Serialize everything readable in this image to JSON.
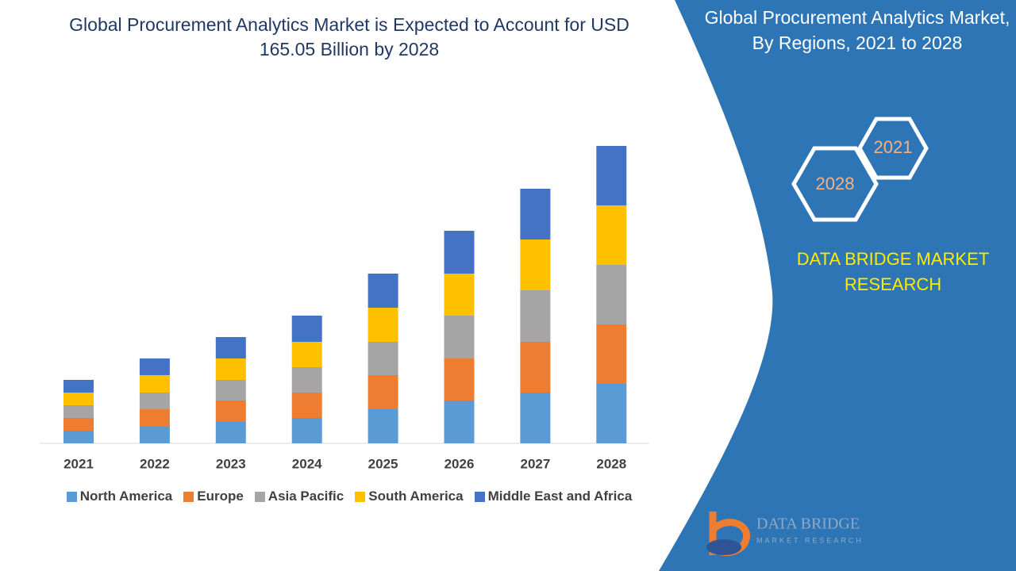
{
  "chart_data": {
    "type": "bar",
    "stacked": true,
    "title": "Global Procurement Analytics Market is Expected to Account for USD 165.05 Billion by 2028",
    "categories": [
      "2021",
      "2022",
      "2023",
      "2024",
      "2025",
      "2026",
      "2027",
      "2028"
    ],
    "series": [
      {
        "name": "North America",
        "color": "#5b9bd5",
        "values": [
          16,
          21,
          27,
          32,
          43,
          54,
          64,
          75
        ]
      },
      {
        "name": "Europe",
        "color": "#ed7d31",
        "values": [
          16,
          22,
          27,
          32,
          43,
          53,
          64,
          75
        ]
      },
      {
        "name": "Asia Pacific",
        "color": "#a5a5a5",
        "values": [
          16,
          21,
          26,
          32,
          42,
          54,
          65,
          75
        ]
      },
      {
        "name": "South America",
        "color": "#ffc000",
        "values": [
          16,
          22,
          27,
          32,
          43,
          53,
          64,
          75
        ]
      },
      {
        "name": "Middle East and Africa",
        "color": "#4472c4",
        "values": [
          16,
          21,
          27,
          33,
          43,
          54,
          64,
          75
        ]
      }
    ]
  },
  "side_panel": {
    "title": "Global Procurement Analytics Market, By Regions, 2021 to 2028",
    "hex_start": "2021",
    "hex_end": "2028",
    "brand": "DATA BRIDGE MARKET RESEARCH"
  },
  "logo": {
    "name": "DATA BRIDGE",
    "tagline": "MARKET RESEARCH"
  }
}
